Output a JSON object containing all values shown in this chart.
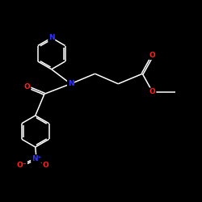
{
  "bg_color": "#000000",
  "bond_color": "#ffffff",
  "atom_colors": {
    "N": "#3333ff",
    "O": "#ff2222",
    "C": "#ffffff"
  },
  "figsize": [
    2.5,
    2.5
  ],
  "dpi": 100,
  "lw": 1.1,
  "fs": 6.5,
  "xlim": [
    0,
    10
  ],
  "ylim": [
    0,
    10
  ]
}
